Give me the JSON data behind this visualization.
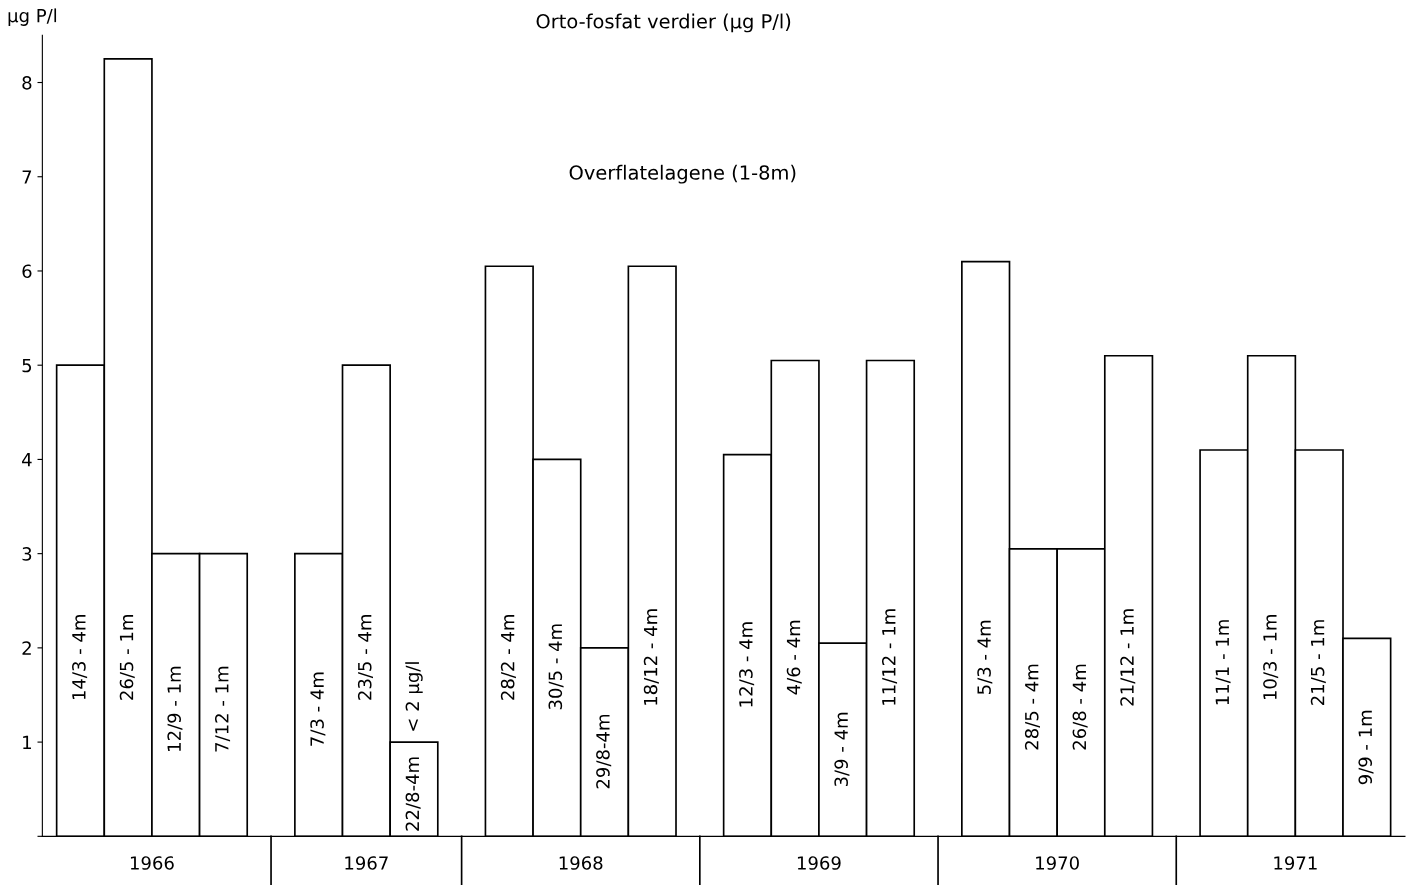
{
  "chart_data": {
    "type": "bar",
    "title": "Orto-fosfat verdier (µg P/l)",
    "subtitle": "Overflatelagene (1-8m)",
    "ylabel": "µg P/l",
    "categories": [
      "14/3 - 4m",
      "26/5 - 1m",
      "12/9 - 1m",
      "7/12 - 1m",
      null,
      "7/3 - 4m",
      "23/5 - 4m",
      "22/8-4m",
      null,
      "28/2 - 4m",
      "30/5 - 4m",
      "29/8-4m",
      "18/12 - 4m",
      null,
      "12/3 - 4m",
      "4/6 - 4m",
      "3/9 - 4m",
      "11/12 - 1m",
      null,
      "5/3 - 4m",
      "28/5 - 4m",
      "26/8 - 4m",
      "21/12 - 1m",
      null,
      "11/1 - 1m",
      "10/3 - 1m",
      "21/5 - 1m",
      "9/9 - 1m"
    ],
    "values": [
      5.0,
      8.25,
      3.0,
      3.0,
      null,
      3.0,
      5.0,
      1.0,
      null,
      6.05,
      4.0,
      2.0,
      6.05,
      null,
      4.05,
      5.05,
      2.05,
      5.05,
      null,
      6.1,
      3.05,
      3.05,
      5.1,
      null,
      4.1,
      5.1,
      4.1,
      2.1
    ],
    "color": "#ffffff",
    "ylim": [
      0,
      8.5
    ],
    "yticks": [
      {
        "value": 0,
        "label": null
      },
      1,
      2,
      3,
      4,
      5,
      6,
      7,
      8
    ],
    "annotations": [
      "1966",
      "1967",
      "1968",
      "1969",
      "1970",
      "1971",
      {
        "text": "< 2 µg/l",
        "x": "22/8-4m",
        "y": 1.0
      }
    ],
    "tick_labels": "y",
    "grid": false,
    "legend": false
  }
}
